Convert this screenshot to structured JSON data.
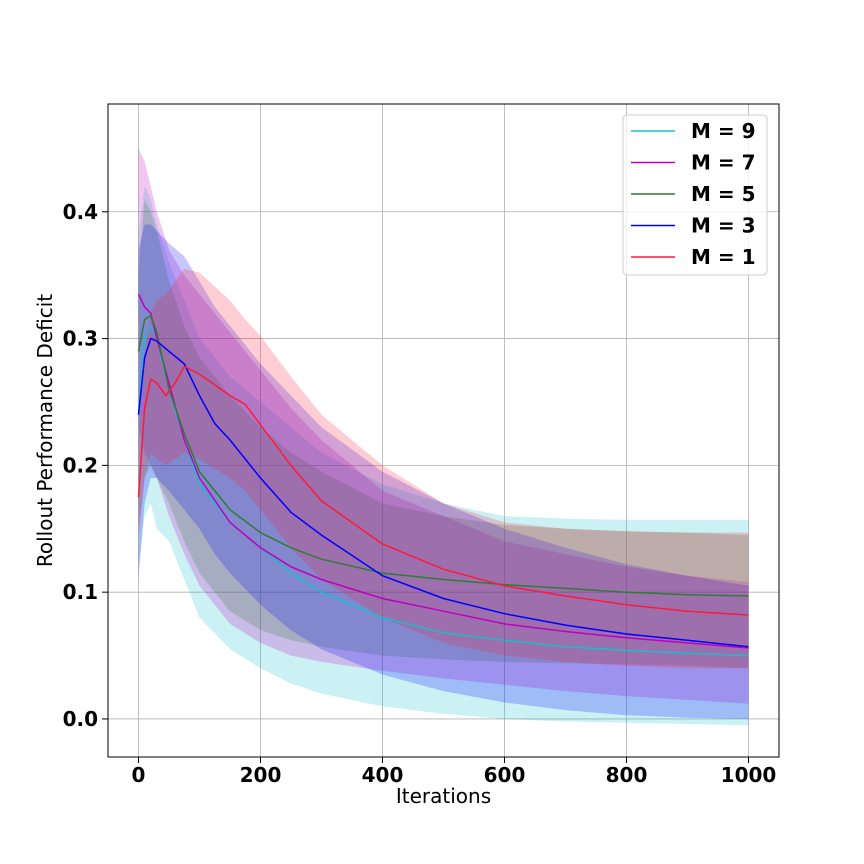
{
  "chart_data": {
    "type": "line",
    "xlabel": "Iterations",
    "ylabel": "Rollout Performance Deficit",
    "xlim": [
      -50,
      1050
    ],
    "ylim": [
      -0.03,
      0.485
    ],
    "xticks": [
      0,
      200,
      400,
      600,
      800,
      1000
    ],
    "xtick_labels": [
      "0",
      "200",
      "400",
      "600",
      "800",
      "1000"
    ],
    "yticks": [
      0.0,
      0.1,
      0.2,
      0.3,
      0.4
    ],
    "ytick_labels": [
      "0.0",
      "0.1",
      "0.2",
      "0.3",
      "0.4"
    ],
    "grid": true,
    "legend_position": "top-right",
    "series": [
      {
        "name": "M = 9",
        "legend_label": "M = 9",
        "color": "#17becf",
        "x": [
          0,
          10,
          20,
          30,
          50,
          75,
          100,
          150,
          200,
          250,
          300,
          400,
          500,
          600,
          700,
          800,
          900,
          1000
        ],
        "mean": [
          0.24,
          0.3,
          0.31,
          0.3,
          0.26,
          0.22,
          0.185,
          0.155,
          0.135,
          0.115,
          0.1,
          0.08,
          0.068,
          0.062,
          0.057,
          0.054,
          0.052,
          0.05
        ],
        "upper": [
          0.38,
          0.42,
          0.41,
          0.39,
          0.36,
          0.33,
          0.3,
          0.27,
          0.25,
          0.23,
          0.21,
          0.185,
          0.17,
          0.16,
          0.158,
          0.157,
          0.157,
          0.157
        ],
        "lower": [
          0.12,
          0.16,
          0.17,
          0.15,
          0.14,
          0.11,
          0.08,
          0.055,
          0.04,
          0.028,
          0.02,
          0.01,
          0.004,
          0.0,
          -0.002,
          -0.003,
          -0.004,
          -0.005
        ]
      },
      {
        "name": "M = 7",
        "legend_label": "M = 7",
        "color": "#bf00bf",
        "x": [
          0,
          10,
          20,
          30,
          50,
          75,
          100,
          150,
          200,
          250,
          300,
          400,
          500,
          600,
          700,
          800,
          900,
          1000
        ],
        "mean": [
          0.335,
          0.325,
          0.32,
          0.3,
          0.265,
          0.22,
          0.19,
          0.155,
          0.135,
          0.12,
          0.11,
          0.095,
          0.085,
          0.075,
          0.069,
          0.064,
          0.06,
          0.056
        ],
        "upper": [
          0.45,
          0.44,
          0.42,
          0.4,
          0.37,
          0.35,
          0.335,
          0.305,
          0.275,
          0.245,
          0.22,
          0.18,
          0.16,
          0.14,
          0.13,
          0.12,
          0.113,
          0.108
        ],
        "lower": [
          0.23,
          0.21,
          0.2,
          0.19,
          0.16,
          0.13,
          0.105,
          0.075,
          0.06,
          0.05,
          0.045,
          0.038,
          0.032,
          0.027,
          0.022,
          0.018,
          0.015,
          0.012
        ]
      },
      {
        "name": "M = 5",
        "legend_label": "M = 5",
        "color": "#2e7d32",
        "x": [
          0,
          10,
          20,
          30,
          50,
          75,
          100,
          150,
          200,
          250,
          300,
          400,
          500,
          600,
          700,
          800,
          900,
          1000
        ],
        "mean": [
          0.29,
          0.315,
          0.318,
          0.305,
          0.26,
          0.225,
          0.195,
          0.165,
          0.147,
          0.135,
          0.126,
          0.115,
          0.11,
          0.106,
          0.103,
          0.1,
          0.098,
          0.097
        ],
        "upper": [
          0.35,
          0.41,
          0.4,
          0.385,
          0.345,
          0.31,
          0.285,
          0.255,
          0.23,
          0.21,
          0.195,
          0.17,
          0.16,
          0.153,
          0.15,
          0.148,
          0.147,
          0.145
        ],
        "lower": [
          0.15,
          0.19,
          0.2,
          0.19,
          0.17,
          0.14,
          0.115,
          0.085,
          0.07,
          0.062,
          0.057,
          0.05,
          0.047,
          0.045,
          0.044,
          0.043,
          0.042,
          0.04
        ]
      },
      {
        "name": "M = 3",
        "legend_label": "M = 3",
        "color": "#0000ff",
        "x": [
          0,
          10,
          20,
          30,
          50,
          75,
          100,
          125,
          150,
          200,
          250,
          300,
          400,
          500,
          600,
          700,
          800,
          900,
          1000
        ],
        "mean": [
          0.24,
          0.285,
          0.3,
          0.298,
          0.29,
          0.28,
          0.255,
          0.233,
          0.22,
          0.19,
          0.163,
          0.145,
          0.113,
          0.095,
          0.083,
          0.074,
          0.067,
          0.062,
          0.057
        ],
        "upper": [
          0.37,
          0.39,
          0.39,
          0.385,
          0.375,
          0.365,
          0.345,
          0.325,
          0.31,
          0.28,
          0.255,
          0.23,
          0.195,
          0.17,
          0.15,
          0.135,
          0.122,
          0.113,
          0.105
        ],
        "lower": [
          0.11,
          0.17,
          0.19,
          0.19,
          0.18,
          0.165,
          0.15,
          0.13,
          0.115,
          0.09,
          0.07,
          0.055,
          0.035,
          0.022,
          0.013,
          0.007,
          0.003,
          0.001,
          0.0
        ]
      },
      {
        "name": "M = 1",
        "legend_label": "M = 1",
        "color": "#ff1a3c",
        "x": [
          0,
          10,
          20,
          30,
          45,
          60,
          75,
          100,
          150,
          175,
          200,
          250,
          300,
          400,
          500,
          600,
          700,
          800,
          900,
          1000
        ],
        "mean": [
          0.175,
          0.245,
          0.268,
          0.265,
          0.255,
          0.265,
          0.278,
          0.272,
          0.255,
          0.248,
          0.232,
          0.2,
          0.172,
          0.138,
          0.118,
          0.105,
          0.097,
          0.09,
          0.085,
          0.082
        ],
        "upper": [
          0.22,
          0.29,
          0.32,
          0.33,
          0.335,
          0.345,
          0.355,
          0.352,
          0.33,
          0.315,
          0.302,
          0.27,
          0.24,
          0.2,
          0.17,
          0.155,
          0.15,
          0.148,
          0.147,
          0.147
        ],
        "lower": [
          0.14,
          0.19,
          0.21,
          0.205,
          0.2,
          0.205,
          0.21,
          0.205,
          0.19,
          0.18,
          0.165,
          0.135,
          0.11,
          0.08,
          0.06,
          0.05,
          0.045,
          0.042,
          0.04,
          0.04
        ]
      }
    ]
  }
}
